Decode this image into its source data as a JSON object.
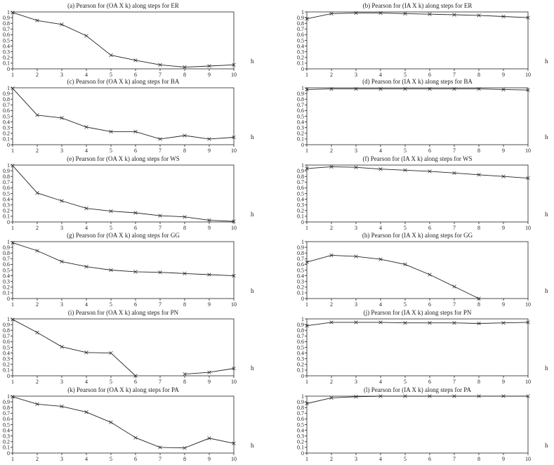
{
  "chart_data": [
    {
      "type": "line",
      "title": "(a)  Pearson for (OA X k)  along steps for ER",
      "xlabel": "h",
      "ylabel": "",
      "x": [
        1,
        2,
        3,
        4,
        5,
        6,
        7,
        8,
        9,
        10
      ],
      "values": [
        0.99,
        0.85,
        0.78,
        0.58,
        0.24,
        0.15,
        0.07,
        0.03,
        0.05,
        0.07
      ],
      "ylim": [
        0,
        1
      ],
      "xlim": [
        1,
        10
      ]
    },
    {
      "type": "line",
      "title": "(b)  Pearson for (IA X k) along steps for ER",
      "xlabel": "h",
      "ylabel": "",
      "x": [
        1,
        2,
        3,
        4,
        5,
        6,
        7,
        8,
        9,
        10
      ],
      "values": [
        0.88,
        0.97,
        0.98,
        0.98,
        0.97,
        0.96,
        0.95,
        0.94,
        0.92,
        0.9
      ],
      "ylim": [
        0,
        1
      ],
      "xlim": [
        1,
        10
      ]
    },
    {
      "type": "line",
      "title": "(c)  Pearson for (OA X k)  along steps for BA",
      "xlabel": "h",
      "ylabel": "",
      "x": [
        1,
        2,
        3,
        4,
        5,
        6,
        7,
        8,
        9,
        10
      ],
      "values": [
        0.99,
        0.52,
        0.47,
        0.31,
        0.23,
        0.23,
        0.1,
        0.16,
        0.1,
        0.13
      ],
      "ylim": [
        0,
        1
      ],
      "xlim": [
        1,
        10
      ]
    },
    {
      "type": "line",
      "title": "(d)  Pearson for (IA X k) along steps for BA",
      "xlabel": "h",
      "ylabel": "",
      "x": [
        1,
        2,
        3,
        4,
        5,
        6,
        7,
        8,
        9,
        10
      ],
      "values": [
        0.97,
        0.98,
        0.98,
        0.98,
        0.98,
        0.98,
        0.98,
        0.98,
        0.97,
        0.96
      ],
      "ylim": [
        0,
        1
      ],
      "xlim": [
        1,
        10
      ]
    },
    {
      "type": "line",
      "title": "(e)  Pearson for (OA X k)  along steps for WS",
      "xlabel": "h",
      "ylabel": "",
      "x": [
        1,
        2,
        3,
        4,
        5,
        6,
        7,
        8,
        9,
        10
      ],
      "values": [
        0.99,
        0.51,
        0.37,
        0.24,
        0.19,
        0.16,
        0.11,
        0.09,
        0.03,
        0.01
      ],
      "ylim": [
        0,
        1
      ],
      "xlim": [
        1,
        10
      ]
    },
    {
      "type": "line",
      "title": "(f)  Pearson for (IA X k) along steps for WS",
      "xlabel": "h",
      "ylabel": "",
      "x": [
        1,
        2,
        3,
        4,
        5,
        6,
        7,
        8,
        9,
        10
      ],
      "values": [
        0.94,
        0.97,
        0.96,
        0.93,
        0.91,
        0.89,
        0.86,
        0.83,
        0.8,
        0.77
      ],
      "ylim": [
        0,
        1
      ],
      "xlim": [
        1,
        10
      ]
    },
    {
      "type": "line",
      "title": "(g)  Pearson for (OA X k)  along steps for GG",
      "xlabel": "h",
      "ylabel": "",
      "x": [
        1,
        2,
        3,
        4,
        5,
        6,
        7,
        8,
        9,
        10
      ],
      "values": [
        0.98,
        0.84,
        0.65,
        0.56,
        0.5,
        0.47,
        0.46,
        0.44,
        0.42,
        0.4
      ],
      "ylim": [
        0,
        1
      ],
      "xlim": [
        1,
        10
      ]
    },
    {
      "type": "line",
      "title": "(h)  Pearson for (IA X k) along steps for GG",
      "xlabel": "h",
      "ylabel": "",
      "x": [
        1,
        2,
        3,
        4,
        5,
        6,
        7,
        8,
        9,
        10
      ],
      "values": [
        0.64,
        0.76,
        0.74,
        0.69,
        0.6,
        0.42,
        0.21,
        0.0,
        null,
        null
      ],
      "ylim": [
        0,
        1
      ],
      "xlim": [
        1,
        10
      ]
    },
    {
      "type": "line",
      "title": "(i)  Pearson for (OA X k)  along steps for PN",
      "xlabel": "h",
      "ylabel": "",
      "x": [
        1,
        2,
        3,
        4,
        5,
        6,
        7,
        8,
        9,
        10
      ],
      "values": [
        0.99,
        0.76,
        0.51,
        0.41,
        0.4,
        0.0,
        null,
        0.03,
        0.06,
        0.13
      ],
      "ylim": [
        0,
        1
      ],
      "xlim": [
        1,
        10
      ]
    },
    {
      "type": "line",
      "title": "(j)  Pearson for (IA X k) along steps for PN",
      "xlabel": "h",
      "ylabel": "",
      "x": [
        1,
        2,
        3,
        4,
        5,
        6,
        7,
        8,
        9,
        10
      ],
      "values": [
        0.88,
        0.94,
        0.94,
        0.94,
        0.93,
        0.93,
        0.93,
        0.92,
        0.93,
        0.94
      ],
      "ylim": [
        0,
        1
      ],
      "xlim": [
        1,
        10
      ]
    },
    {
      "type": "line",
      "title": "(k)  Pearson for (OA X k)  along steps for PA",
      "xlabel": "h",
      "ylabel": "",
      "x": [
        1,
        2,
        3,
        4,
        5,
        6,
        7,
        8,
        9,
        10
      ],
      "values": [
        0.99,
        0.86,
        0.82,
        0.72,
        0.54,
        0.27,
        0.1,
        0.09,
        0.26,
        0.17
      ],
      "ylim": [
        0,
        1
      ],
      "xlim": [
        1,
        10
      ]
    },
    {
      "type": "line",
      "title": "(l)  Pearson for (IA X k) along steps for PA",
      "xlabel": "h",
      "ylabel": "",
      "x": [
        1,
        2,
        3,
        4,
        5,
        6,
        7,
        8,
        9,
        10
      ],
      "values": [
        0.87,
        0.97,
        0.99,
        1.0,
        1.0,
        1.0,
        1.0,
        1.0,
        1.0,
        1.0
      ],
      "ylim": [
        0,
        1
      ],
      "xlim": [
        1,
        10
      ]
    }
  ],
  "y_tick_labels": [
    "0",
    "0.1",
    "0.2",
    "0.3",
    "0.4",
    "0.5",
    "0.6",
    "0.7",
    "0.8",
    "0.9",
    "1"
  ],
  "x_tick_labels": [
    "1",
    "2",
    "3",
    "4",
    "5",
    "6",
    "7",
    "8",
    "9",
    "10"
  ],
  "colors": {
    "line": "#222222",
    "background": "#ffffff"
  }
}
